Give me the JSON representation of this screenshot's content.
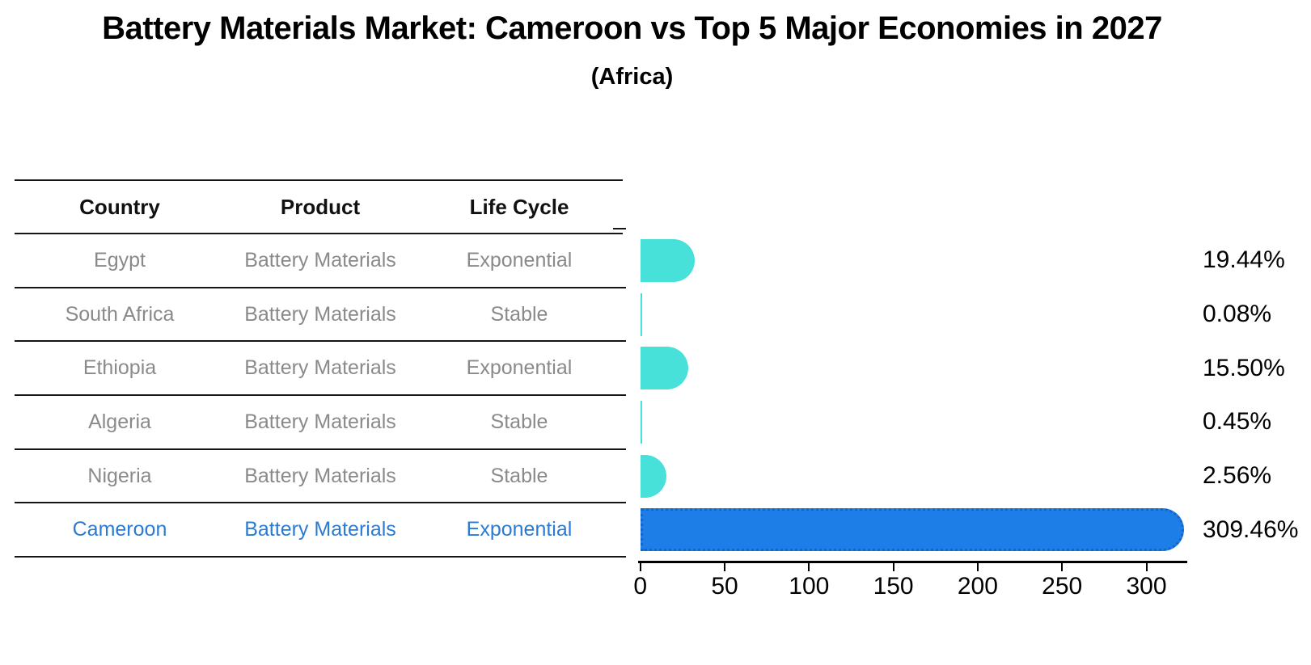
{
  "title": "Battery Materials Market: Cameroon vs Top 5 Major Economies in 2027",
  "subtitle": "(Africa)",
  "table": {
    "headers": [
      "Country",
      "Product",
      "Life Cycle"
    ],
    "rows": [
      {
        "country": "Egypt",
        "product": "Battery Materials",
        "life_cycle": "Exponential",
        "highlighted": false
      },
      {
        "country": "South Africa",
        "product": "Battery Materials",
        "life_cycle": "Stable",
        "highlighted": false
      },
      {
        "country": "Ethiopia",
        "product": "Battery Materials",
        "life_cycle": "Exponential",
        "highlighted": false
      },
      {
        "country": "Algeria",
        "product": "Battery Materials",
        "life_cycle": "Stable",
        "highlighted": false
      },
      {
        "country": "Nigeria",
        "product": "Battery Materials",
        "life_cycle": "Stable",
        "highlighted": false
      },
      {
        "country": "Cameroon",
        "product": "Battery Materials",
        "life_cycle": "Exponential",
        "highlighted": true
      }
    ]
  },
  "chart_data": {
    "type": "bar",
    "orientation": "horizontal",
    "title": "Battery Materials Market: Cameroon vs Top 5 Major Economies in 2027 (Africa)",
    "categories": [
      "Egypt",
      "South Africa",
      "Ethiopia",
      "Algeria",
      "Nigeria",
      "Cameroon"
    ],
    "values": [
      19.44,
      0.08,
      15.5,
      0.45,
      2.56,
      309.46
    ],
    "value_labels": [
      "19.44%",
      "0.08%",
      "15.50%",
      "0.45%",
      "2.56%",
      "309.46%"
    ],
    "xlabel": "",
    "ylabel": "",
    "xticks": [
      0,
      50,
      100,
      150,
      200,
      250,
      300
    ],
    "xlim": [
      0,
      324
    ],
    "grid": false,
    "legend": false,
    "colors": {
      "bar_default": "#48e1d9",
      "bar_highlight": "#1d7ee8",
      "bar_highlight_border": "#1465cb",
      "highlight_text": "#2b7bd4",
      "table_text": "#8a8a8a",
      "axis_text": "#000000"
    }
  }
}
